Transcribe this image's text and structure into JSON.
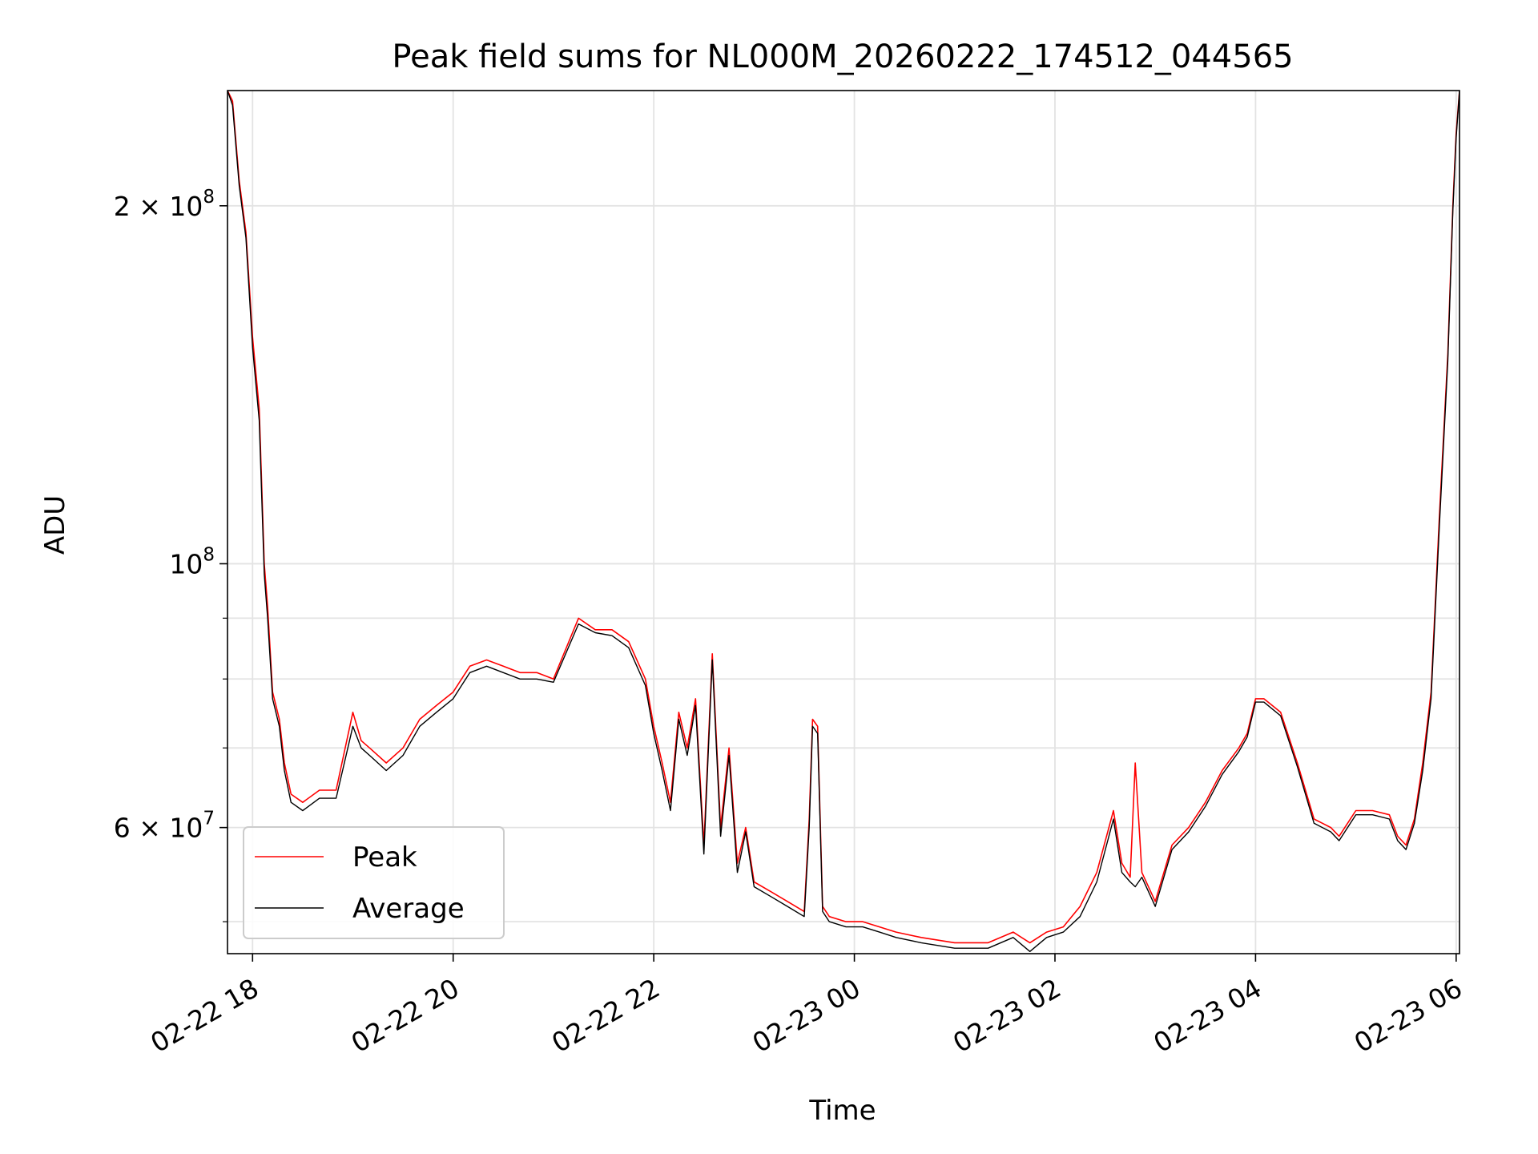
{
  "chart_data": {
    "type": "line",
    "title": "Peak field sums for NL000M_20260222_174512_044565",
    "xlabel": "Time",
    "ylabel": "ADU",
    "y_scale": "log",
    "grid": true,
    "legend_position": "lower-left",
    "xlim": [
      "2026-02-22 17:45",
      "2026-02-23 06:02"
    ],
    "ylim": [
      47000000,
      250000000
    ],
    "x_ticks": [
      {
        "t": "2026-02-22 18:00",
        "label": "02-22 18"
      },
      {
        "t": "2026-02-22 20:00",
        "label": "02-22 20"
      },
      {
        "t": "2026-02-22 22:00",
        "label": "02-22 22"
      },
      {
        "t": "2026-02-23 00:00",
        "label": "02-23 00"
      },
      {
        "t": "2026-02-23 02:00",
        "label": "02-23 02"
      },
      {
        "t": "2026-02-23 04:00",
        "label": "02-23 04"
      },
      {
        "t": "2026-02-23 06:00",
        "label": "02-23 06"
      }
    ],
    "y_major_ticks": [
      {
        "value": 100000000,
        "base": "10",
        "exp": "8",
        "mant": ""
      },
      {
        "value": 200000000,
        "base": "10",
        "exp": "8",
        "mant": "2 × "
      },
      {
        "value": 60000000,
        "base": "10",
        "exp": "7",
        "mant": "6 × "
      }
    ],
    "y_minor_ticks": [
      50000000,
      70000000,
      80000000,
      90000000
    ],
    "series": [
      {
        "name": "Peak",
        "color": "#ff0000",
        "x": [
          "2026-02-22 17:45",
          "2026-02-22 17:48",
          "2026-02-22 17:52",
          "2026-02-22 17:56",
          "2026-02-22 18:00",
          "2026-02-22 18:04",
          "2026-02-22 18:07",
          "2026-02-22 18:09",
          "2026-02-22 18:12",
          "2026-02-22 18:16",
          "2026-02-22 18:19",
          "2026-02-22 18:23",
          "2026-02-22 18:30",
          "2026-02-22 18:40",
          "2026-02-22 18:50",
          "2026-02-22 19:00",
          "2026-02-22 19:05",
          "2026-02-22 19:10",
          "2026-02-22 19:20",
          "2026-02-22 19:30",
          "2026-02-22 19:40",
          "2026-02-22 19:50",
          "2026-02-22 20:00",
          "2026-02-22 20:05",
          "2026-02-22 20:10",
          "2026-02-22 20:20",
          "2026-02-22 20:30",
          "2026-02-22 20:40",
          "2026-02-22 20:50",
          "2026-02-22 21:00",
          "2026-02-22 21:15",
          "2026-02-22 21:25",
          "2026-02-22 21:35",
          "2026-02-22 21:45",
          "2026-02-22 21:55",
          "2026-02-22 22:00",
          "2026-02-22 22:05",
          "2026-02-22 22:10",
          "2026-02-22 22:15",
          "2026-02-22 22:20",
          "2026-02-22 22:25",
          "2026-02-22 22:30",
          "2026-02-22 22:35",
          "2026-02-22 22:40",
          "2026-02-22 22:45",
          "2026-02-22 22:50",
          "2026-02-22 22:55",
          "2026-02-22 23:00",
          "2026-02-22 23:10",
          "2026-02-22 23:20",
          "2026-02-22 23:30",
          "2026-02-22 23:33",
          "2026-02-22 23:35",
          "2026-02-22 23:38",
          "2026-02-22 23:41",
          "2026-02-22 23:45",
          "2026-02-22 23:55",
          "2026-02-23 00:05",
          "2026-02-23 00:15",
          "2026-02-23 00:25",
          "2026-02-23 00:40",
          "2026-02-23 01:00",
          "2026-02-23 01:20",
          "2026-02-23 01:35",
          "2026-02-23 01:45",
          "2026-02-23 01:55",
          "2026-02-23 02:05",
          "2026-02-23 02:15",
          "2026-02-23 02:25",
          "2026-02-23 02:35",
          "2026-02-23 02:40",
          "2026-02-23 02:45",
          "2026-02-23 02:48",
          "2026-02-23 02:52",
          "2026-02-23 03:00",
          "2026-02-23 03:10",
          "2026-02-23 03:20",
          "2026-02-23 03:30",
          "2026-02-23 03:40",
          "2026-02-23 03:50",
          "2026-02-23 03:55",
          "2026-02-23 04:00",
          "2026-02-23 04:05",
          "2026-02-23 04:15",
          "2026-02-23 04:25",
          "2026-02-23 04:35",
          "2026-02-23 04:45",
          "2026-02-23 04:50",
          "2026-02-23 05:00",
          "2026-02-23 05:10",
          "2026-02-23 05:20",
          "2026-02-23 05:25",
          "2026-02-23 05:30",
          "2026-02-23 05:35",
          "2026-02-23 05:40",
          "2026-02-23 05:45",
          "2026-02-23 05:50",
          "2026-02-23 05:55",
          "2026-02-23 05:58",
          "2026-02-23 06:00",
          "2026-02-23 06:02"
        ],
        "values": [
          250000000,
          245000000,
          210000000,
          190000000,
          155000000,
          135000000,
          100000000,
          92000000,
          78000000,
          74000000,
          68000000,
          64000000,
          63000000,
          64500000,
          64500000,
          75000000,
          71000000,
          70000000,
          68000000,
          70000000,
          74000000,
          76000000,
          78000000,
          80000000,
          82000000,
          83000000,
          82000000,
          81000000,
          81000000,
          80000000,
          90000000,
          88000000,
          88000000,
          86000000,
          80000000,
          73000000,
          68000000,
          63000000,
          75000000,
          70000000,
          77000000,
          58000000,
          84000000,
          60000000,
          70000000,
          56000000,
          60000000,
          54000000,
          53000000,
          52000000,
          51000000,
          61000000,
          74000000,
          73000000,
          51500000,
          50500000,
          50000000,
          50000000,
          49500000,
          49000000,
          48500000,
          48000000,
          48000000,
          49000000,
          48000000,
          49000000,
          49500000,
          51500000,
          55000000,
          62000000,
          56000000,
          54500000,
          68000000,
          55000000,
          52000000,
          58000000,
          60000000,
          63000000,
          67000000,
          70000000,
          72000000,
          77000000,
          77000000,
          75000000,
          68000000,
          61000000,
          60000000,
          59000000,
          62000000,
          62000000,
          61500000,
          59000000,
          58000000,
          61000000,
          68000000,
          78000000,
          110000000,
          150000000,
          200000000,
          230000000,
          250000000
        ]
      },
      {
        "name": "Average",
        "color": "#000000",
        "x": [
          "2026-02-22 17:45",
          "2026-02-22 17:48",
          "2026-02-22 17:52",
          "2026-02-22 17:56",
          "2026-02-22 18:00",
          "2026-02-22 18:04",
          "2026-02-22 18:07",
          "2026-02-22 18:09",
          "2026-02-22 18:12",
          "2026-02-22 18:16",
          "2026-02-22 18:19",
          "2026-02-22 18:23",
          "2026-02-22 18:30",
          "2026-02-22 18:40",
          "2026-02-22 18:50",
          "2026-02-22 19:00",
          "2026-02-22 19:05",
          "2026-02-22 19:10",
          "2026-02-22 19:20",
          "2026-02-22 19:30",
          "2026-02-22 19:40",
          "2026-02-22 19:50",
          "2026-02-22 20:00",
          "2026-02-22 20:05",
          "2026-02-22 20:10",
          "2026-02-22 20:20",
          "2026-02-22 20:30",
          "2026-02-22 20:40",
          "2026-02-22 20:50",
          "2026-02-22 21:00",
          "2026-02-22 21:15",
          "2026-02-22 21:25",
          "2026-02-22 21:35",
          "2026-02-22 21:45",
          "2026-02-22 21:55",
          "2026-02-22 22:00",
          "2026-02-22 22:05",
          "2026-02-22 22:10",
          "2026-02-22 22:15",
          "2026-02-22 22:20",
          "2026-02-22 22:25",
          "2026-02-22 22:30",
          "2026-02-22 22:35",
          "2026-02-22 22:40",
          "2026-02-22 22:45",
          "2026-02-22 22:50",
          "2026-02-22 22:55",
          "2026-02-22 23:00",
          "2026-02-22 23:10",
          "2026-02-22 23:20",
          "2026-02-22 23:30",
          "2026-02-22 23:33",
          "2026-02-22 23:35",
          "2026-02-22 23:38",
          "2026-02-22 23:41",
          "2026-02-22 23:45",
          "2026-02-22 23:55",
          "2026-02-23 00:05",
          "2026-02-23 00:15",
          "2026-02-23 00:25",
          "2026-02-23 00:40",
          "2026-02-23 01:00",
          "2026-02-23 01:20",
          "2026-02-23 01:35",
          "2026-02-23 01:45",
          "2026-02-23 01:55",
          "2026-02-23 02:05",
          "2026-02-23 02:15",
          "2026-02-23 02:25",
          "2026-02-23 02:35",
          "2026-02-23 02:40",
          "2026-02-23 02:45",
          "2026-02-23 02:48",
          "2026-02-23 02:52",
          "2026-02-23 03:00",
          "2026-02-23 03:10",
          "2026-02-23 03:20",
          "2026-02-23 03:30",
          "2026-02-23 03:40",
          "2026-02-23 03:50",
          "2026-02-23 03:55",
          "2026-02-23 04:00",
          "2026-02-23 04:05",
          "2026-02-23 04:15",
          "2026-02-23 04:25",
          "2026-02-23 04:35",
          "2026-02-23 04:45",
          "2026-02-23 04:50",
          "2026-02-23 05:00",
          "2026-02-23 05:10",
          "2026-02-23 05:20",
          "2026-02-23 05:25",
          "2026-02-23 05:30",
          "2026-02-23 05:35",
          "2026-02-23 05:40",
          "2026-02-23 05:45",
          "2026-02-23 05:50",
          "2026-02-23 05:55",
          "2026-02-23 05:58",
          "2026-02-23 06:00",
          "2026-02-23 06:02"
        ],
        "values": [
          250000000,
          243000000,
          208000000,
          188000000,
          152000000,
          132000000,
          98000000,
          90000000,
          77000000,
          73000000,
          67000000,
          63000000,
          62000000,
          63500000,
          63500000,
          73000000,
          70000000,
          69000000,
          67000000,
          69000000,
          73000000,
          75000000,
          77000000,
          79000000,
          81000000,
          82000000,
          81000000,
          80000000,
          80000000,
          79500000,
          89000000,
          87500000,
          87000000,
          85000000,
          79000000,
          72000000,
          67000000,
          62000000,
          74000000,
          69000000,
          76000000,
          57000000,
          83000000,
          59000000,
          69000000,
          55000000,
          59500000,
          53500000,
          52500000,
          51500000,
          50500000,
          60000000,
          73000000,
          72000000,
          51000000,
          50000000,
          49500000,
          49500000,
          49000000,
          48500000,
          48000000,
          47500000,
          47500000,
          48500000,
          47200000,
          48500000,
          49000000,
          50500000,
          54000000,
          61000000,
          55000000,
          54000000,
          53500000,
          54500000,
          51500000,
          57500000,
          59500000,
          62500000,
          66500000,
          69500000,
          71500000,
          76500000,
          76500000,
          74500000,
          67500000,
          60500000,
          59500000,
          58500000,
          61500000,
          61500000,
          61000000,
          58500000,
          57500000,
          60500000,
          67000000,
          77000000,
          108000000,
          148000000,
          198000000,
          228000000,
          250000000
        ]
      }
    ]
  }
}
